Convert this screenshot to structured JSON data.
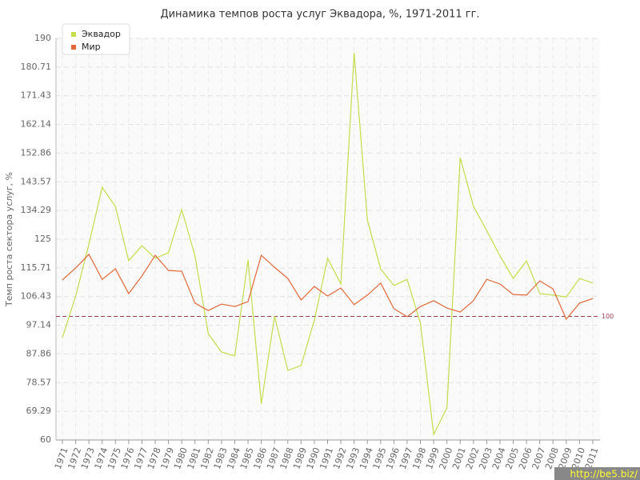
{
  "chart_data": {
    "type": "line",
    "title": "Динамика темпов роста услуг Эквадора, %, 1971-2011 гг.",
    "y_label": "Темп роста сектора услуг, %",
    "categories": [
      "1971",
      "1972",
      "1973",
      "1974",
      "1975",
      "1976",
      "1977",
      "1978",
      "1979",
      "1980",
      "1981",
      "1982",
      "1983",
      "1984",
      "1985",
      "1986",
      "1987",
      "1988",
      "1989",
      "1990",
      "1991",
      "1992",
      "1993",
      "1994",
      "1995",
      "1996",
      "1997",
      "1998",
      "1999",
      "2000",
      "2001",
      "2002",
      "2003",
      "2004",
      "2005",
      "2006",
      "2007",
      "2008",
      "2009",
      "2010",
      "2011"
    ],
    "series": [
      {
        "name": "Эквадор",
        "color": "#c3dd4c",
        "values": [
          93.1,
          106.6,
          123.4,
          141.8,
          135.6,
          118.0,
          122.9,
          118.8,
          120.6,
          134.6,
          119.6,
          94.4,
          88.5,
          87.2,
          118.3,
          71.7,
          100.1,
          82.5,
          84.1,
          98.8,
          118.8,
          110.5,
          185.3,
          131.2,
          115.4,
          110.0,
          112.0,
          97.8,
          61.8,
          70.4,
          151.4,
          135.6,
          127.8,
          119.6,
          112.3,
          118.0,
          107.4,
          106.9,
          106.3,
          112.3,
          110.8
        ]
      },
      {
        "name": "Мир",
        "color": "#e0683a",
        "values": [
          111.8,
          115.7,
          120.1,
          112.0,
          115.4,
          107.4,
          113.1,
          119.8,
          114.9,
          114.6,
          104.3,
          101.9,
          104.0,
          103.2,
          104.8,
          119.8,
          115.9,
          112.3,
          105.3,
          109.7,
          106.6,
          109.2,
          103.8,
          106.9,
          110.8,
          102.5,
          99.9,
          103.2,
          105.1,
          102.7,
          101.4,
          105.1,
          112.0,
          110.5,
          107.1,
          106.9,
          111.5,
          108.9,
          99.1,
          104.3,
          105.8
        ]
      }
    ],
    "ylim": [
      60,
      190
    ],
    "yticks": [
      60,
      69.29,
      78.57,
      87.86,
      97.14,
      106.43,
      115.71,
      125,
      134.29,
      143.57,
      152.86,
      162.14,
      171.43,
      180.71,
      190
    ],
    "reference_line": 100,
    "reference_color": "#9b3a4a",
    "grid": true,
    "legend": "upper left",
    "watermark": "http://be5.biz/"
  }
}
